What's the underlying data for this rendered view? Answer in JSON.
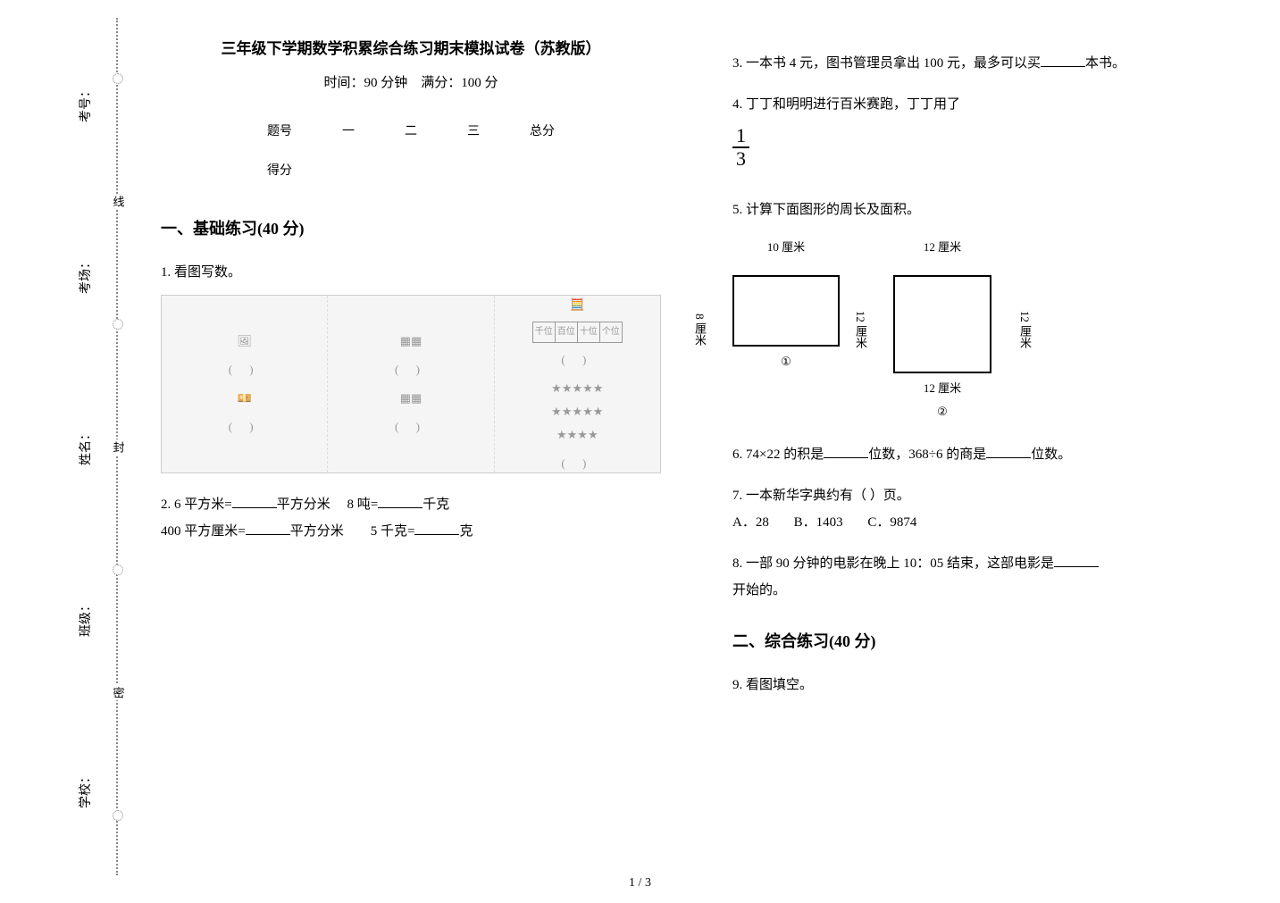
{
  "binding": {
    "labels": [
      "考号：",
      "考场：",
      "姓名：",
      "班级：",
      "学校："
    ],
    "seal_chars": [
      "线",
      "封",
      "密"
    ]
  },
  "header": {
    "title": "三年级下学期数学积累综合练习期末模拟试卷（苏教版）",
    "time_label": "时间：90 分钟",
    "score_label": "满分：100 分"
  },
  "score_table": {
    "row1": [
      "题号",
      "一",
      "二",
      "三",
      "总分"
    ],
    "row2": [
      "得分",
      "",
      "",
      "",
      ""
    ]
  },
  "sections": {
    "s1": {
      "title": "一、基础练习(40 分)"
    },
    "s2": {
      "title": "二、综合练习(40 分)"
    }
  },
  "questions": {
    "q1": {
      "label": "1. 看图写数。",
      "cells": [
        "( )",
        "( )",
        "( )"
      ],
      "place_cells": [
        "千位",
        "百位",
        "十位",
        "个位"
      ]
    },
    "q2": {
      "line1_a": "2. 6 平方米=",
      "line1_b": "平方分米",
      "line1_c": "8 吨=",
      "line1_d": "千克",
      "line2_a": "400 平方厘米=",
      "line2_b": "平方分米",
      "line2_c": "5 千克=",
      "line2_d": "克"
    },
    "q3": {
      "a": "3. 一本书 4 元，图书管理员拿出 100 元，最多可以买",
      "b": "本书。"
    },
    "q4": {
      "text": "4. 丁丁和明明进行百米赛跑，丁丁用了",
      "frac_num": "1",
      "frac_den": "3"
    },
    "q5": {
      "text": "5. 计算下面图形的周长及面积。",
      "shape1": {
        "top": "10 厘米",
        "left": "8 厘米",
        "label": "①"
      },
      "shape2": {
        "top": "12 厘米",
        "left": "12 厘米",
        "right": "12 厘米",
        "bottom": "12 厘米",
        "label": "②"
      }
    },
    "q6": {
      "a": "6. 74×22 的积是",
      "b": "位数，368÷6 的商是",
      "c": "位数。"
    },
    "q7": {
      "text": "7. 一本新华字典约有（        ）页。",
      "choice_a": "A．28",
      "choice_b": "B．1403",
      "choice_c": "C．9874"
    },
    "q8": {
      "a": "8. 一部 90 分钟的电影在晚上 10：05 结束，这部电影是",
      "b": "开始的。"
    },
    "q9": {
      "text": "9. 看图填空。"
    }
  },
  "page_number": "1 / 3",
  "colors": {
    "text": "#000000",
    "bg": "#ffffff",
    "placeholder": "#f5f5f5"
  }
}
